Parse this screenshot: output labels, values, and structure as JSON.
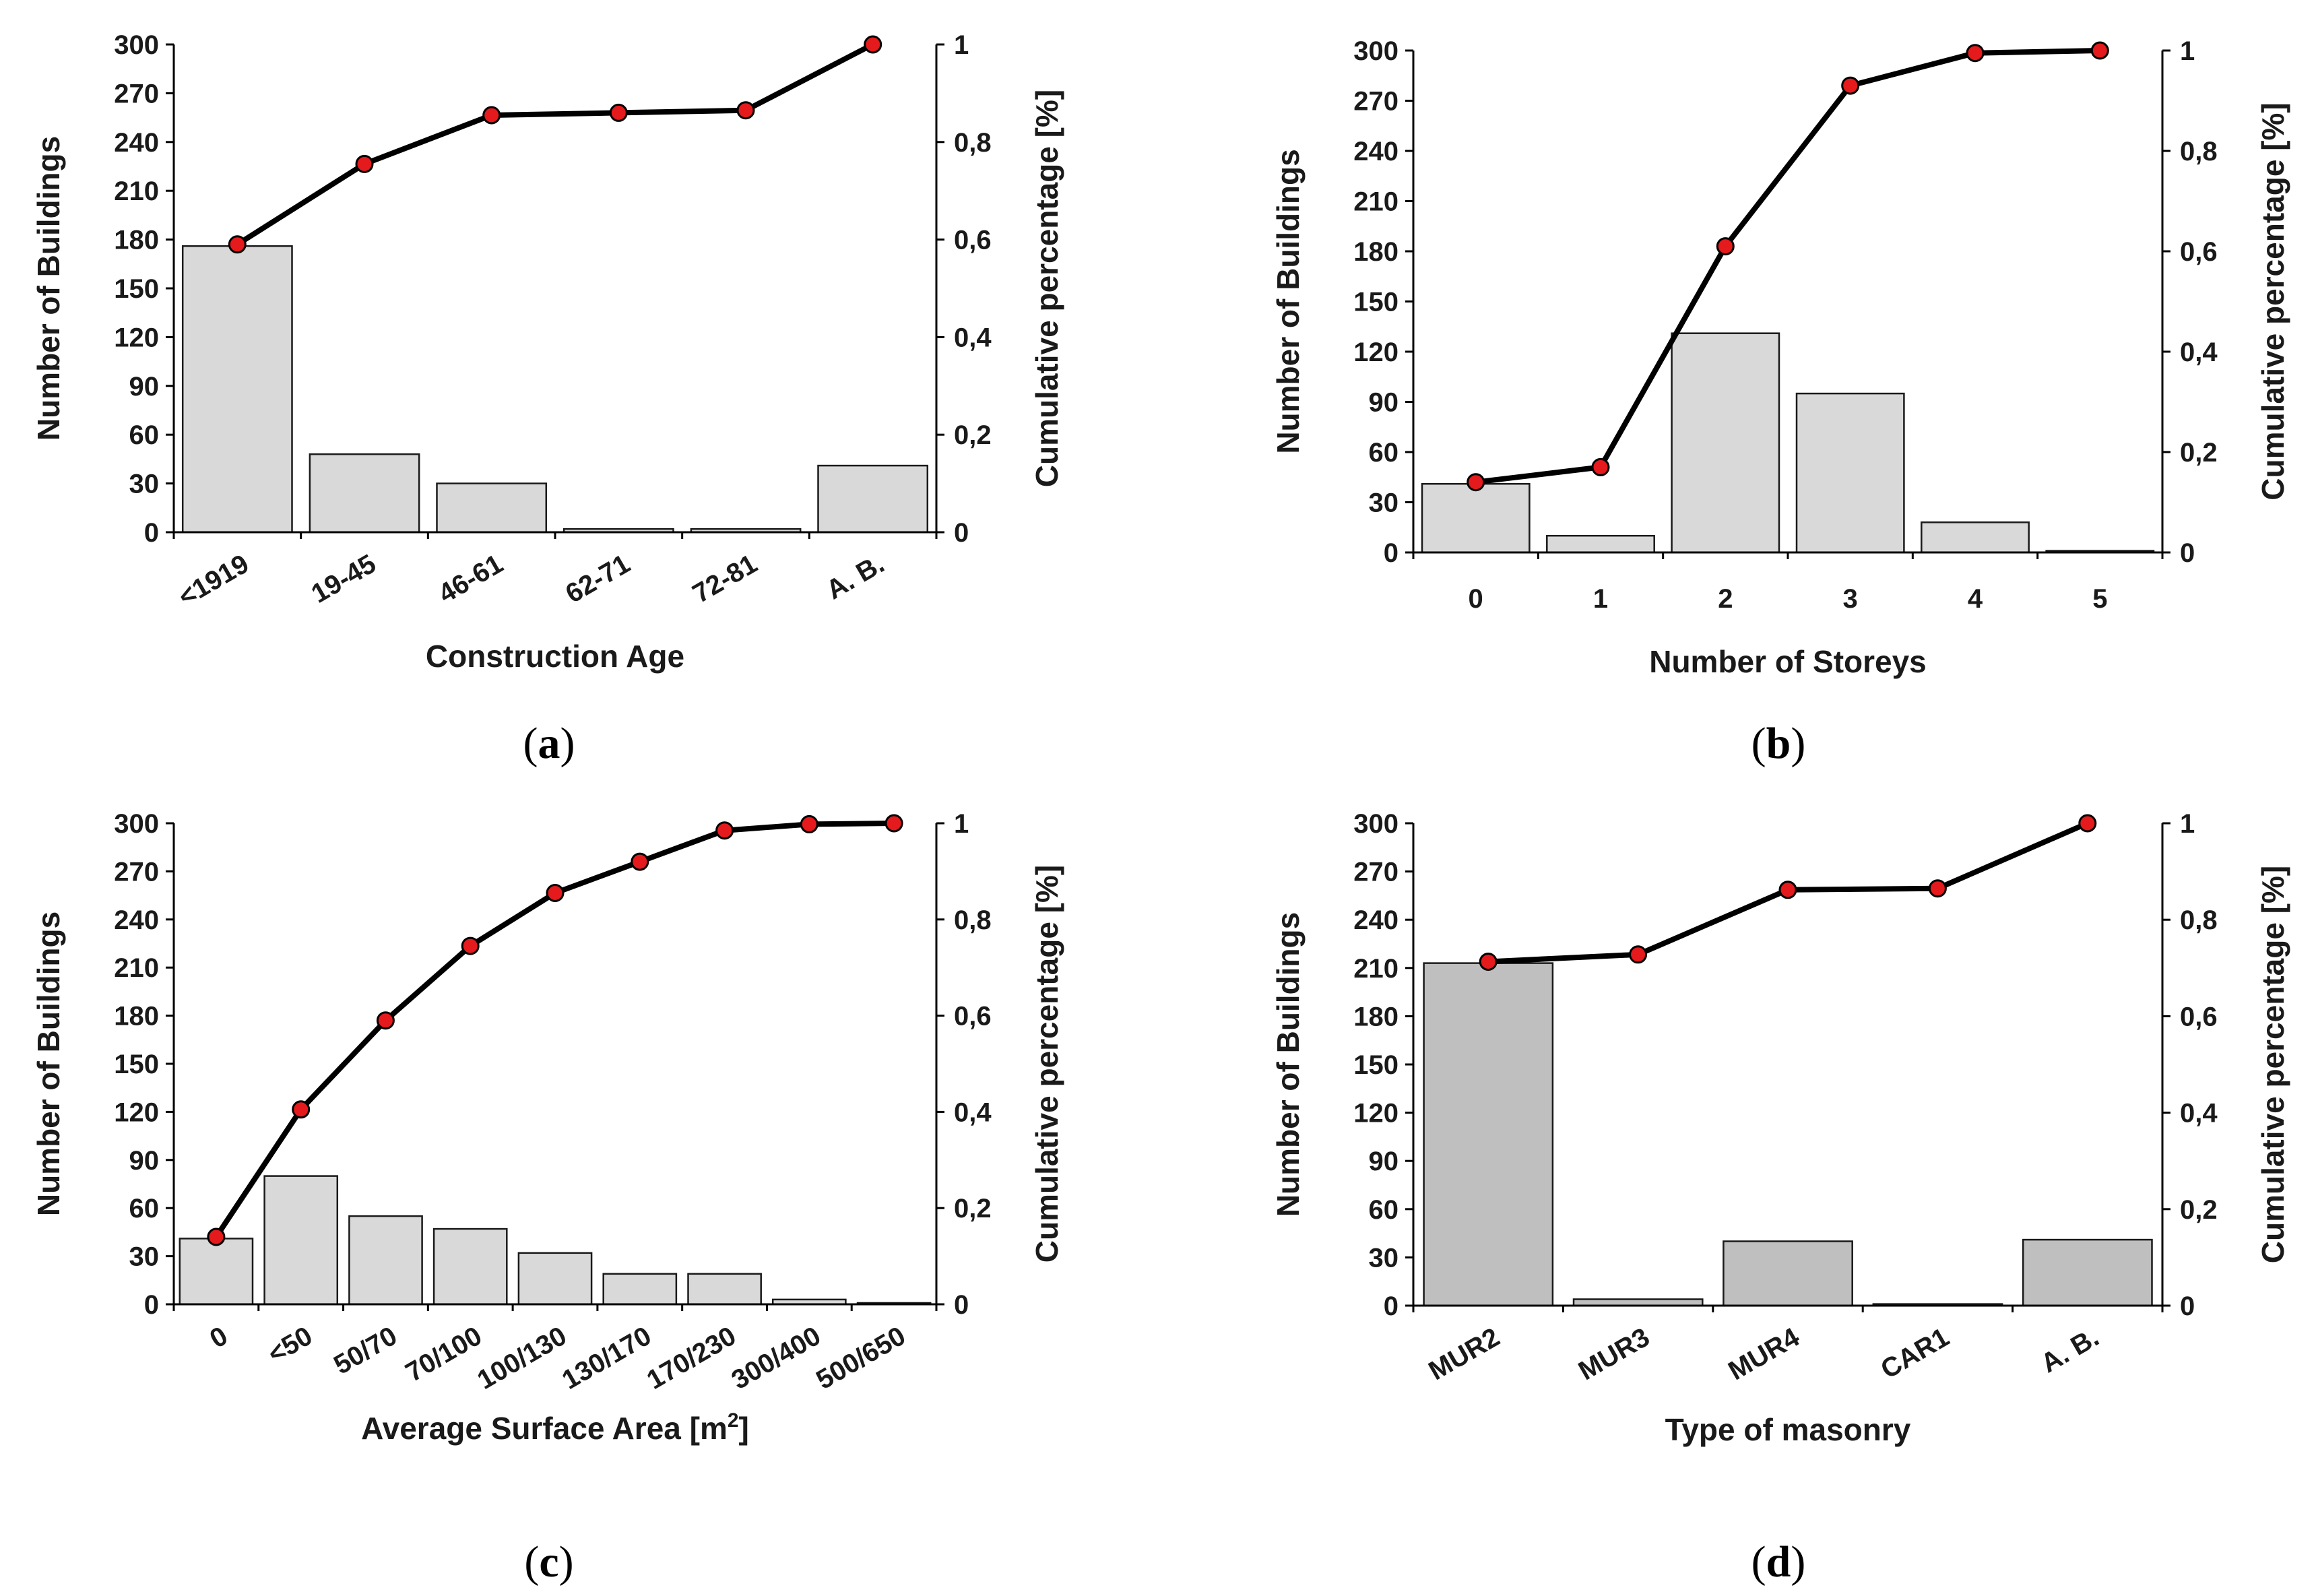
{
  "colors": {
    "line": "#000000",
    "marker": "#e41a1c",
    "bar_light": "#d9d9d9",
    "bar_dark": "#bfbfbf",
    "bar_edge": "#1a1a1a"
  },
  "chart_data": [
    {
      "type": "bar",
      "panel": "a",
      "caption": "(a)",
      "xlabel": "Construction Age",
      "ylabel": "Number of Buildings",
      "y2label": "Cumulative percentage [%]",
      "categories": [
        "<1919",
        "19-45",
        "46-61",
        "62-71",
        "72-81",
        "A. B."
      ],
      "values": [
        176,
        48,
        30,
        2,
        2,
        41
      ],
      "cumulative": [
        0.59,
        0.755,
        0.855,
        0.86,
        0.865,
        1.0
      ],
      "ylim": [
        0,
        300
      ],
      "yticks": [
        "0",
        "30",
        "60",
        "90",
        "120",
        "150",
        "180",
        "210",
        "240",
        "270",
        "300"
      ],
      "y2lim": [
        0,
        1
      ],
      "y2ticks": [
        "0",
        "0,2",
        "0,4",
        "0,6",
        "0,8",
        "1"
      ],
      "rotated_labels": true
    },
    {
      "type": "bar",
      "panel": "b",
      "caption": "(b)",
      "xlabel": "Number of Storeys",
      "ylabel": "Number of Buildings",
      "y2label": "Cumulative percentage [%]",
      "categories": [
        "0",
        "1",
        "2",
        "3",
        "4",
        "5"
      ],
      "values": [
        41,
        10,
        131,
        95,
        18,
        1
      ],
      "cumulative": [
        0.14,
        0.17,
        0.61,
        0.93,
        0.995,
        1.0
      ],
      "ylim": [
        0,
        300
      ],
      "yticks": [
        "0",
        "30",
        "60",
        "90",
        "120",
        "150",
        "180",
        "210",
        "240",
        "270",
        "300"
      ],
      "y2lim": [
        0,
        1
      ],
      "y2ticks": [
        "0",
        "0,2",
        "0,4",
        "0,6",
        "0,8",
        "1"
      ],
      "rotated_labels": false
    },
    {
      "type": "bar",
      "panel": "c",
      "caption": "(c)",
      "xlabel": "Average Surface Area [m",
      "xlabel_sup": "2",
      "xlabel_tail": "]",
      "ylabel": "Number of Buildings",
      "y2label": "Cumulative percentage [%]",
      "categories": [
        "0",
        "<50",
        "50/70",
        "70/100",
        "100/130",
        "130/170",
        "170/230",
        "300/400",
        "500/650"
      ],
      "values": [
        41,
        80,
        55,
        47,
        32,
        19,
        19,
        3,
        0
      ],
      "cumulative": [
        0.14,
        0.405,
        0.59,
        0.745,
        0.855,
        0.92,
        0.985,
        0.998,
        1.0
      ],
      "ylim": [
        0,
        300
      ],
      "yticks": [
        "0",
        "30",
        "60",
        "90",
        "120",
        "150",
        "180",
        "210",
        "240",
        "270",
        "300"
      ],
      "y2lim": [
        0,
        1
      ],
      "y2ticks": [
        "0",
        "0,2",
        "0,4",
        "0,6",
        "0,8",
        "1"
      ],
      "rotated_labels": true
    },
    {
      "type": "bar",
      "panel": "d",
      "caption": "(d)",
      "xlabel": "Type of masonry",
      "ylabel": "Number of Buildings",
      "y2label": "Cumulative percentage [%]",
      "categories": [
        "MUR2",
        "MUR3",
        "MUR4",
        "CAR1",
        "A. B."
      ],
      "values": [
        213,
        4,
        40,
        1,
        41
      ],
      "cumulative": [
        0.713,
        0.728,
        0.862,
        0.865,
        1.0
      ],
      "ylim": [
        0,
        300
      ],
      "yticks": [
        "0",
        "30",
        "60",
        "90",
        "120",
        "150",
        "180",
        "210",
        "240",
        "270",
        "300"
      ],
      "y2lim": [
        0,
        1
      ],
      "y2ticks": [
        "0",
        "0,2",
        "0,4",
        "0,6",
        "0,8",
        "1"
      ],
      "rotated_labels": true,
      "dark_bars": true
    }
  ]
}
